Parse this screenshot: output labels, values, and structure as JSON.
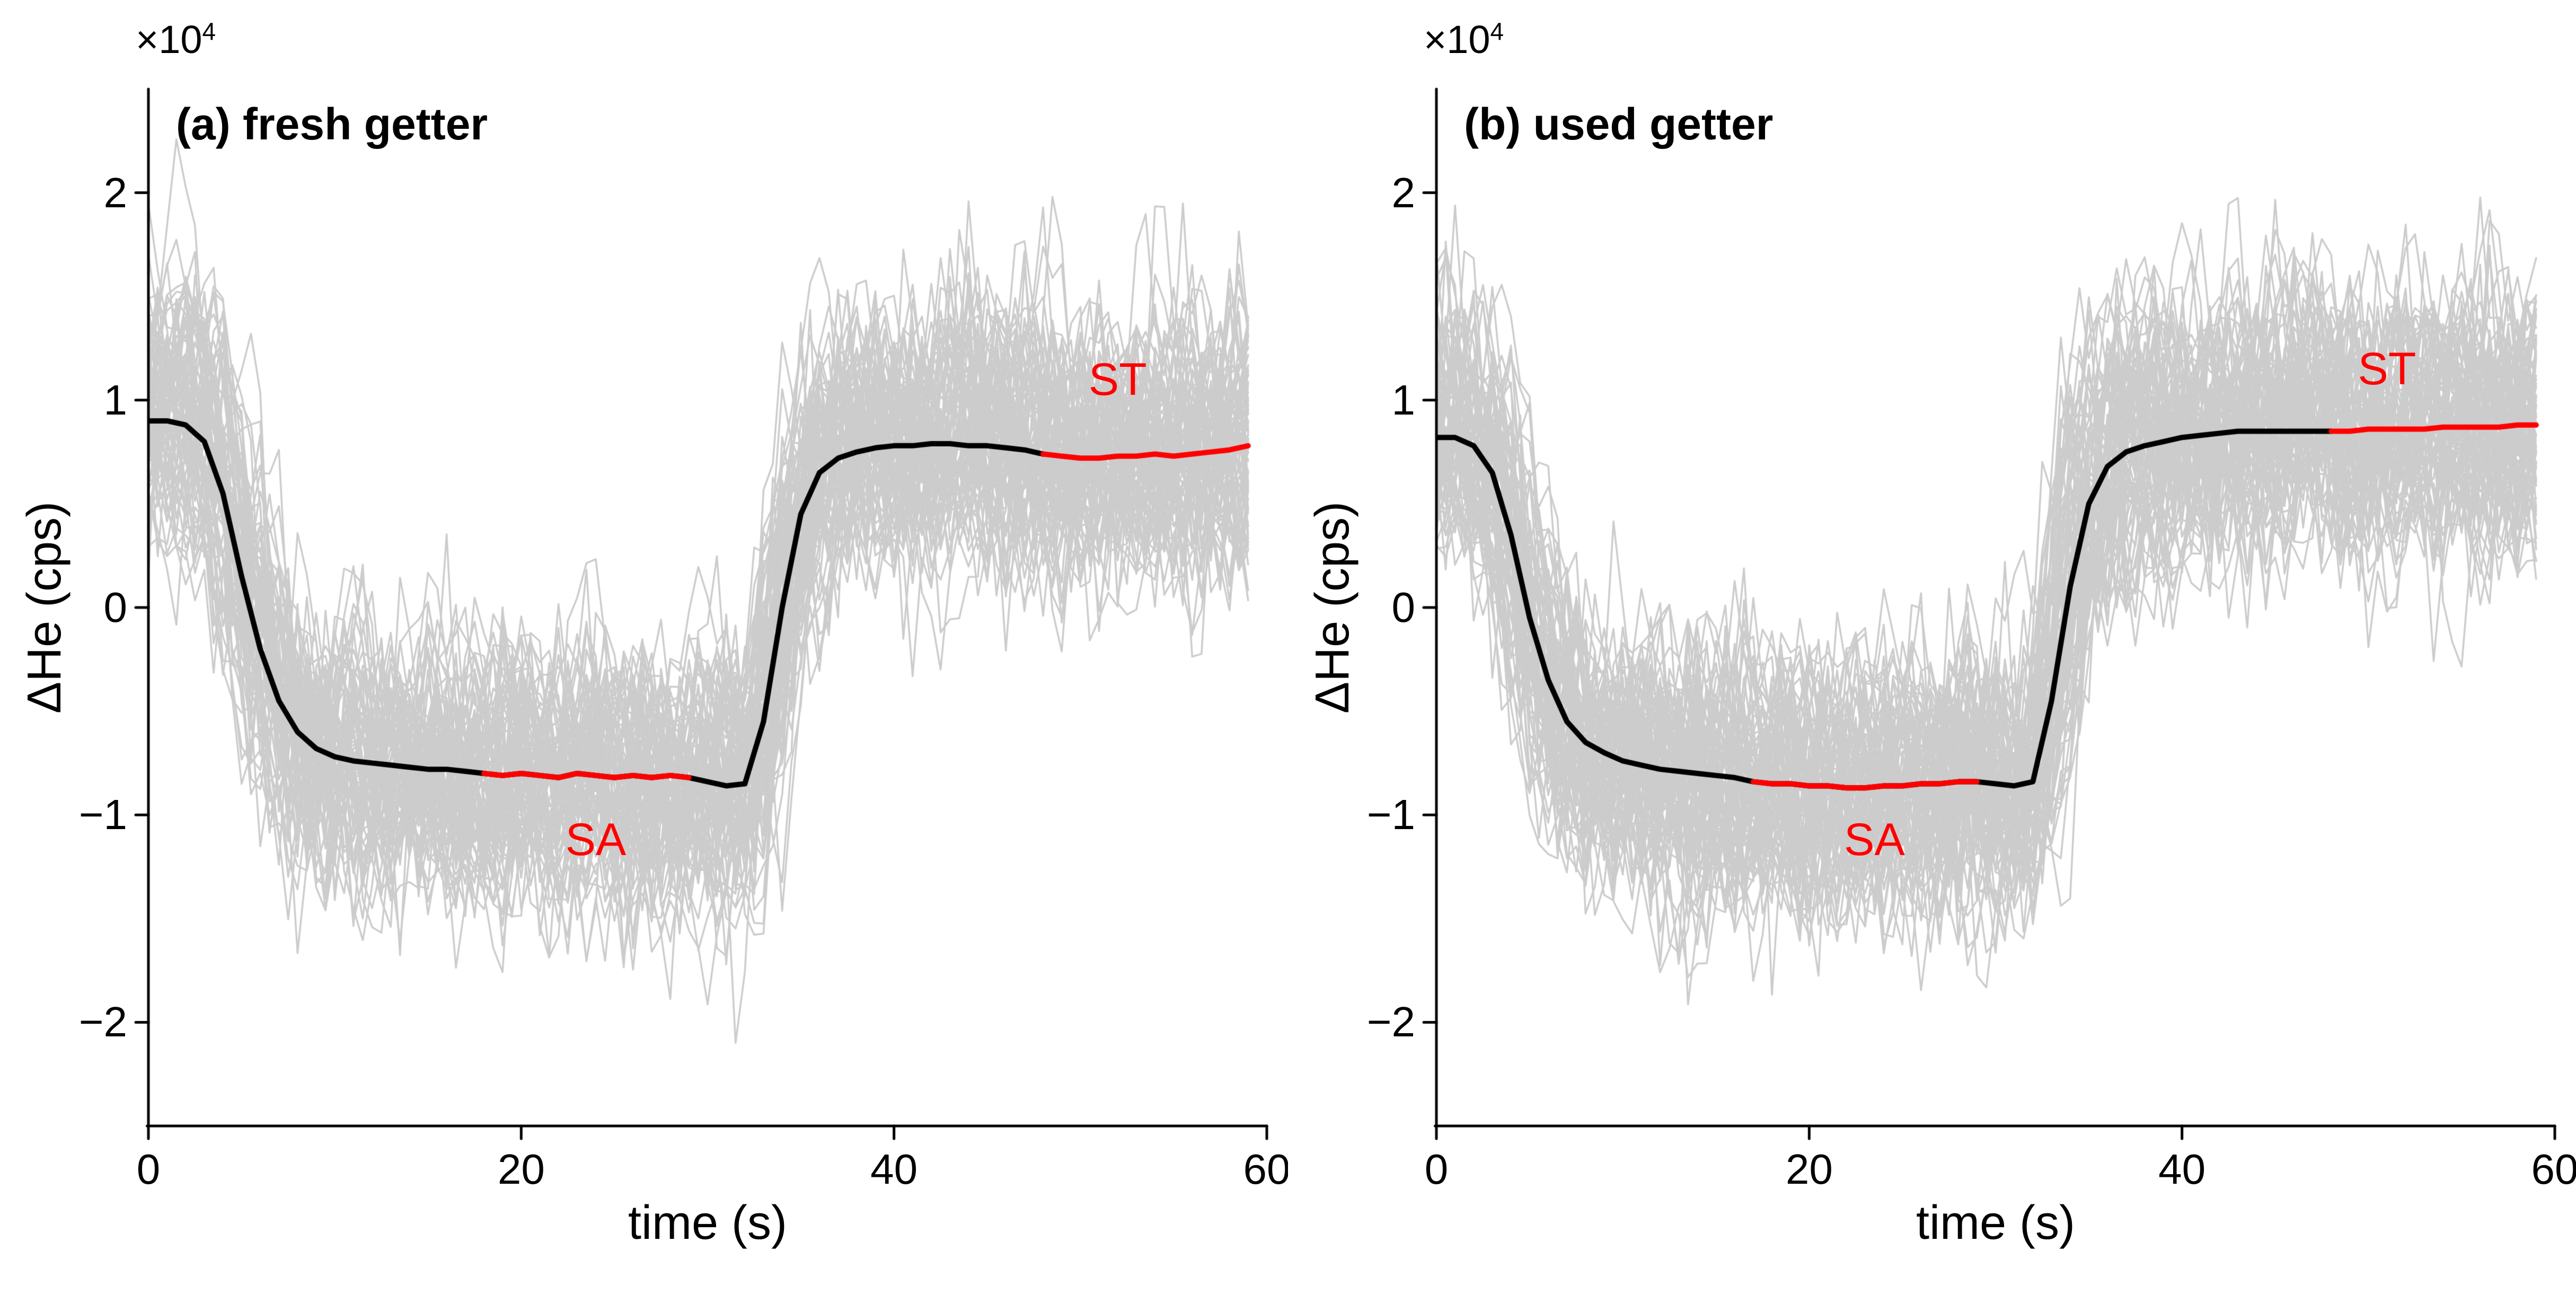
{
  "figure": {
    "background": "#ffffff",
    "mean_color": "#000000",
    "highlight_color": "#ff0000",
    "ensemble_color": "#cccccc",
    "axis_color": "#000000"
  },
  "chart_data": [
    {
      "type": "line",
      "panel": "a",
      "title": "(a) fresh getter",
      "xlabel": "time (s)",
      "ylabel": "ΔHe (cps)",
      "y_offset_label": {
        "base": "×10",
        "exponent": "4"
      },
      "xlim": [
        0,
        60
      ],
      "ylim": [
        -25000,
        25000
      ],
      "xticks": [
        0,
        20,
        40,
        60
      ],
      "xtick_labels": [
        "0",
        "20",
        "40",
        "60"
      ],
      "yticks": [
        -20000,
        -10000,
        0,
        10000,
        20000
      ],
      "ytick_labels": [
        "−2",
        "−1",
        "0",
        "1",
        "2"
      ],
      "x": [
        0,
        1,
        2,
        3,
        4,
        5,
        6,
        7,
        8,
        9,
        10,
        11,
        12,
        13,
        14,
        15,
        16,
        17,
        18,
        19,
        20,
        21,
        22,
        23,
        24,
        25,
        26,
        27,
        28,
        29,
        30,
        31,
        32,
        33,
        34,
        35,
        36,
        37,
        38,
        39,
        40,
        41,
        42,
        43,
        44,
        45,
        46,
        47,
        48,
        49,
        50,
        51,
        52,
        53,
        54,
        55,
        56,
        57,
        58,
        59
      ],
      "mean_values": [
        9000,
        9000,
        8800,
        8000,
        5500,
        1500,
        -2000,
        -4500,
        -6000,
        -6800,
        -7200,
        -7400,
        -7500,
        -7600,
        -7700,
        -7800,
        -7800,
        -7900,
        -8000,
        -8100,
        -8000,
        -8100,
        -8200,
        -8000,
        -8100,
        -8200,
        -8100,
        -8200,
        -8100,
        -8200,
        -8400,
        -8600,
        -8500,
        -5500,
        0,
        4500,
        6500,
        7200,
        7500,
        7700,
        7800,
        7800,
        7900,
        7900,
        7800,
        7800,
        7700,
        7600,
        7400,
        7300,
        7200,
        7200,
        7300,
        7300,
        7400,
        7300,
        7400,
        7500,
        7600,
        7800
      ],
      "mean_plotted_to_x": 48,
      "sa_segment": {
        "name": "SA",
        "x": [
          18,
          19,
          20,
          21,
          22,
          23,
          24,
          25,
          26,
          27,
          28,
          29
        ],
        "values": [
          -8000,
          -8100,
          -8000,
          -8100,
          -8200,
          -8000,
          -8100,
          -8200,
          -8100,
          -8200,
          -8100,
          -8200
        ]
      },
      "st_segment": {
        "name": "ST",
        "x": [
          48,
          49,
          50,
          51,
          52,
          53,
          54,
          55,
          56,
          57,
          58,
          59
        ],
        "values": [
          7400,
          7300,
          7200,
          7200,
          7300,
          7300,
          7400,
          7300,
          7400,
          7500,
          7600,
          7800
        ]
      },
      "ensemble": {
        "count": 80,
        "color": "#cccccc"
      },
      "annotations": [
        {
          "text": "SA",
          "x": 24,
          "y": -11200,
          "color": "#ff0000"
        },
        {
          "text": "ST",
          "x": 52,
          "y": 11000,
          "color": "#ff0000"
        }
      ]
    },
    {
      "type": "line",
      "panel": "b",
      "title": "(b) used getter",
      "xlabel": "time (s)",
      "ylabel": "ΔHe (cps)",
      "y_offset_label": {
        "base": "×10",
        "exponent": "4"
      },
      "xlim": [
        0,
        60
      ],
      "ylim": [
        -25000,
        25000
      ],
      "xticks": [
        0,
        20,
        40,
        60
      ],
      "xtick_labels": [
        "0",
        "20",
        "40",
        "60"
      ],
      "yticks": [
        -20000,
        -10000,
        0,
        10000,
        20000
      ],
      "ytick_labels": [
        "−2",
        "−1",
        "0",
        "1",
        "2"
      ],
      "x": [
        0,
        1,
        2,
        3,
        4,
        5,
        6,
        7,
        8,
        9,
        10,
        11,
        12,
        13,
        14,
        15,
        16,
        17,
        18,
        19,
        20,
        21,
        22,
        23,
        24,
        25,
        26,
        27,
        28,
        29,
        30,
        31,
        32,
        33,
        34,
        35,
        36,
        37,
        38,
        39,
        40,
        41,
        42,
        43,
        44,
        45,
        46,
        47,
        48,
        49,
        50,
        51,
        52,
        53,
        54,
        55,
        56,
        57,
        58,
        59
      ],
      "mean_values": [
        8200,
        8200,
        7800,
        6500,
        3500,
        -500,
        -3500,
        -5500,
        -6500,
        -7000,
        -7400,
        -7600,
        -7800,
        -7900,
        -8000,
        -8100,
        -8200,
        -8400,
        -8500,
        -8500,
        -8600,
        -8600,
        -8700,
        -8700,
        -8600,
        -8600,
        -8500,
        -8500,
        -8400,
        -8400,
        -8500,
        -8600,
        -8400,
        -4500,
        1000,
        5000,
        6800,
        7500,
        7800,
        8000,
        8200,
        8300,
        8400,
        8500,
        8500,
        8500,
        8500,
        8500,
        8500,
        8500,
        8600,
        8600,
        8600,
        8600,
        8700,
        8700,
        8700,
        8700,
        8800,
        8800
      ],
      "mean_plotted_to_x": 48,
      "sa_segment": {
        "name": "SA",
        "x": [
          17,
          18,
          19,
          20,
          21,
          22,
          23,
          24,
          25,
          26,
          27,
          28,
          29
        ],
        "values": [
          -8400,
          -8500,
          -8500,
          -8600,
          -8600,
          -8700,
          -8700,
          -8600,
          -8600,
          -8500,
          -8500,
          -8400,
          -8400
        ]
      },
      "st_segment": {
        "name": "ST",
        "x": [
          48,
          49,
          50,
          51,
          52,
          53,
          54,
          55,
          56,
          57,
          58,
          59
        ],
        "values": [
          8500,
          8500,
          8600,
          8600,
          8600,
          8600,
          8700,
          8700,
          8700,
          8700,
          8800,
          8800
        ]
      },
      "ensemble": {
        "count": 80,
        "color": "#cccccc"
      },
      "annotations": [
        {
          "text": "SA",
          "x": 23.5,
          "y": -11200,
          "color": "#ff0000"
        },
        {
          "text": "ST",
          "x": 51,
          "y": 11500,
          "color": "#ff0000"
        }
      ]
    }
  ]
}
